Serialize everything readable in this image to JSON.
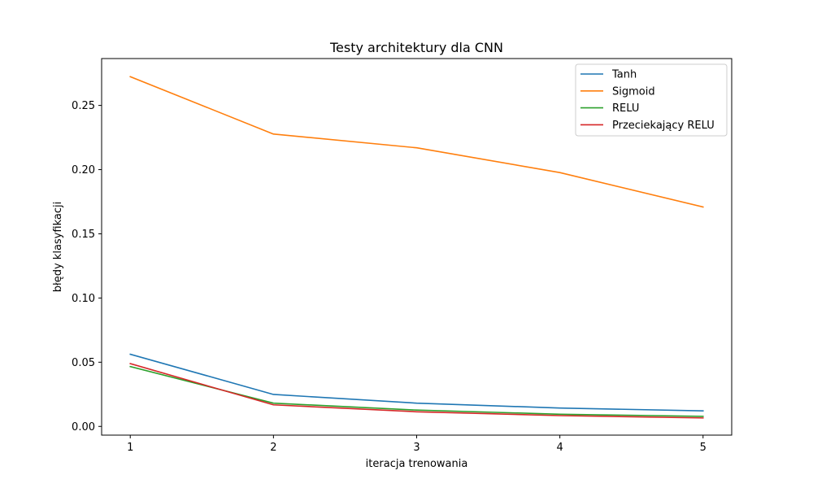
{
  "chart_data": {
    "type": "line",
    "title": "Testy architektury dla CNN",
    "xlabel": "iteracja trenowania",
    "ylabel": "błędy klasyfikacji",
    "x": [
      1,
      2,
      3,
      4,
      5
    ],
    "x_ticks": [
      "1",
      "2",
      "3",
      "4",
      "5"
    ],
    "xlim": [
      0.8,
      5.2
    ],
    "ylim": [
      -0.0068,
      0.2865
    ],
    "y_ticks": [
      0.0,
      0.05,
      0.1,
      0.15,
      0.2,
      0.25
    ],
    "y_tick_labels": [
      "0.00",
      "0.05",
      "0.10",
      "0.15",
      "0.20",
      "0.25"
    ],
    "grid": false,
    "legend_position": "top-right",
    "series": [
      {
        "name": "Tanh",
        "color": "#1f77b4",
        "values": [
          0.0562,
          0.0249,
          0.0181,
          0.0143,
          0.0121
        ]
      },
      {
        "name": "Sigmoid",
        "color": "#ff7f0e",
        "values": [
          0.2724,
          0.2277,
          0.217,
          0.1977,
          0.1709
        ]
      },
      {
        "name": "RELU",
        "color": "#2ca02c",
        "values": [
          0.0466,
          0.0181,
          0.0127,
          0.0095,
          0.0078
        ]
      },
      {
        "name": "Przeciekający RELU",
        "color": "#d62728",
        "values": [
          0.0489,
          0.0168,
          0.0114,
          0.0084,
          0.0066
        ]
      }
    ]
  }
}
